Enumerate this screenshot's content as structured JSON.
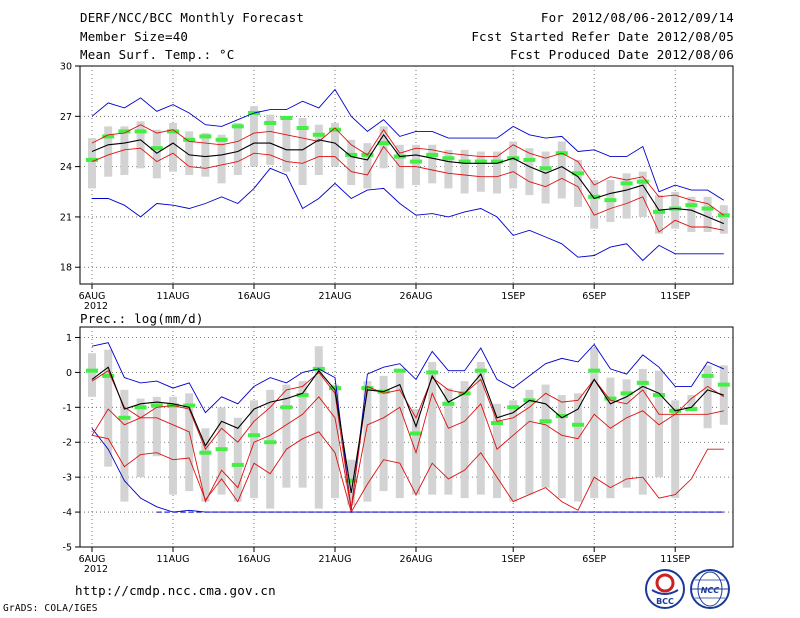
{
  "header": {
    "title": "DERF/NCC/BCC Monthly Forecast",
    "member_size": "Member Size=40",
    "variable1": "Mean Surf. Temp.: °C",
    "period": "For 2012/08/06-2012/09/14",
    "started": "Fcst Started Refer Date 2012/08/05",
    "produced": "Fcst Produced Date 2012/08/06"
  },
  "footer": {
    "url": "http://cmdp.ncc.cma.gov.cn",
    "credit": "GrADS: COLA/IGES",
    "logo1": "BCC",
    "logo2": "NCC"
  },
  "colors": {
    "ensemble_box": "#d3d3d3",
    "median": "#44ee44",
    "mean": "#000000",
    "spread": "#dd1111",
    "envelope": "#0000cc",
    "grid": "#555555"
  },
  "chart_data": [
    {
      "type": "line",
      "name": "temperature",
      "title": "Mean Surf. Temp.: °C",
      "ylabel": "°C",
      "ylim": [
        17,
        30
      ],
      "yticks": [
        18,
        21,
        24,
        27,
        30
      ],
      "x_tick_labels": [
        "6AUG",
        "11AUG",
        "16AUG",
        "21AUG",
        "26AUG",
        "1SEP",
        "6SEP",
        "11SEP"
      ],
      "x_tick_index": [
        0,
        5,
        10,
        15,
        20,
        26,
        31,
        36
      ],
      "year_label": "2012",
      "days": 40,
      "series": [
        {
          "name": "max",
          "color": "#0000cc",
          "values": [
            27.0,
            27.8,
            27.5,
            28.1,
            27.3,
            27.7,
            27.2,
            26.5,
            26.4,
            26.8,
            27.2,
            27.4,
            27.4,
            27.9,
            27.5,
            28.6,
            27.0,
            26.1,
            26.8,
            25.8,
            26.1,
            26.1,
            25.7,
            25.7,
            25.7,
            25.7,
            26.4,
            25.9,
            25.7,
            25.8,
            24.9,
            25.0,
            24.6,
            24.6,
            25.2,
            22.5,
            22.9,
            22.6,
            22.6,
            22.0
          ]
        },
        {
          "name": "mean_plus_sd",
          "color": "#dd1111",
          "values": [
            25.4,
            25.9,
            26.0,
            26.5,
            26.0,
            26.2,
            25.5,
            25.4,
            25.3,
            25.5,
            26.0,
            26.1,
            25.9,
            25.7,
            25.5,
            26.3,
            25.3,
            24.7,
            26.2,
            24.8,
            25.1,
            25.0,
            24.8,
            24.7,
            24.6,
            24.6,
            25.3,
            24.8,
            24.5,
            24.8,
            24.3,
            22.9,
            23.4,
            23.2,
            23.4,
            22.2,
            22.3,
            22.0,
            21.8,
            21.1
          ]
        },
        {
          "name": "mean",
          "color": "#000000",
          "values": [
            24.9,
            25.3,
            25.4,
            25.6,
            24.8,
            25.4,
            24.7,
            24.6,
            24.7,
            24.9,
            25.4,
            25.4,
            25.0,
            25.0,
            25.6,
            25.4,
            24.6,
            24.4,
            25.9,
            24.6,
            24.7,
            24.5,
            24.3,
            24.2,
            24.2,
            24.2,
            24.5,
            24.0,
            23.6,
            24.0,
            23.4,
            22.1,
            22.4,
            22.6,
            22.9,
            21.4,
            21.5,
            21.4,
            21.0,
            20.6
          ]
        },
        {
          "name": "mean_minus_sd",
          "color": "#dd1111",
          "values": [
            24.3,
            24.7,
            25.0,
            25.1,
            24.3,
            24.8,
            24.0,
            23.9,
            24.1,
            24.3,
            24.8,
            24.7,
            24.3,
            24.2,
            24.6,
            24.6,
            23.7,
            23.5,
            25.2,
            24.0,
            24.0,
            23.8,
            23.6,
            23.5,
            23.4,
            23.4,
            23.7,
            23.1,
            22.8,
            23.3,
            22.8,
            21.1,
            21.5,
            21.8,
            22.2,
            20.1,
            20.8,
            20.4,
            20.4,
            20.2
          ]
        },
        {
          "name": "min",
          "color": "#0000cc",
          "values": [
            22.1,
            22.1,
            21.7,
            21.0,
            21.8,
            21.7,
            21.5,
            21.8,
            22.2,
            21.8,
            22.7,
            23.9,
            23.5,
            21.5,
            22.1,
            23.0,
            22.1,
            22.6,
            22.7,
            21.8,
            21.1,
            21.2,
            21.0,
            21.3,
            21.5,
            21.0,
            19.9,
            20.2,
            19.8,
            19.4,
            18.6,
            18.7,
            19.2,
            19.4,
            18.4,
            19.3,
            18.8,
            18.8,
            18.8,
            18.8
          ]
        },
        {
          "name": "median",
          "color": "#44ee44",
          "values": [
            24.4,
            25.8,
            26.1,
            26.1,
            25.1,
            26.1,
            25.6,
            25.8,
            25.6,
            26.4,
            27.2,
            26.6,
            26.9,
            26.3,
            25.9,
            26.2,
            24.7,
            24.7,
            25.4,
            24.6,
            24.3,
            24.7,
            24.5,
            24.3,
            24.3,
            24.3,
            24.5,
            24.4,
            23.9,
            24.8,
            23.6,
            22.2,
            22.0,
            23.0,
            23.1,
            21.3,
            21.5,
            21.7,
            21.5,
            21.1
          ]
        },
        {
          "name": "ensemble_q75",
          "color": "#d3d3d3",
          "values": [
            25.7,
            26.4,
            26.4,
            26.7,
            26.2,
            26.6,
            26.1,
            26.0,
            25.9,
            26.6,
            27.6,
            27.1,
            27.0,
            26.9,
            26.5,
            26.6,
            25.6,
            25.4,
            26.4,
            25.3,
            25.3,
            25.3,
            25.0,
            25.0,
            24.9,
            24.9,
            25.5,
            25.1,
            24.9,
            25.5,
            24.4,
            23.2,
            23.2,
            23.6,
            23.7,
            22.3,
            22.5,
            22.2,
            22.2,
            21.7
          ]
        },
        {
          "name": "ensemble_q25",
          "color": "#d3d3d3",
          "values": [
            22.7,
            23.4,
            23.5,
            23.9,
            23.3,
            23.7,
            23.5,
            23.4,
            23.0,
            23.5,
            24.0,
            24.1,
            23.7,
            22.9,
            23.5,
            24.0,
            22.9,
            22.7,
            23.9,
            22.7,
            22.9,
            23.0,
            22.7,
            22.4,
            22.5,
            22.4,
            22.7,
            22.3,
            21.8,
            22.1,
            21.6,
            20.3,
            20.7,
            20.9,
            21.0,
            20.0,
            20.3,
            20.1,
            20.1,
            20.0
          ]
        }
      ]
    },
    {
      "type": "line",
      "name": "precipitation",
      "title": "Prec.: log(mm/d)",
      "ylabel": "log(mm/d)",
      "ylim": [
        -5,
        1.3
      ],
      "yticks": [
        -5,
        -4,
        -3,
        -2,
        -1,
        0,
        1
      ],
      "x_tick_labels": [
        "6AUG",
        "11AUG",
        "16AUG",
        "21AUG",
        "26AUG",
        "1SEP",
        "6SEP",
        "11SEP"
      ],
      "x_tick_index": [
        0,
        5,
        10,
        15,
        20,
        26,
        31,
        36
      ],
      "year_label": "2012",
      "days": 40,
      "series": [
        {
          "name": "max",
          "color": "#0000cc",
          "values": [
            0.75,
            0.85,
            -0.15,
            -0.3,
            -0.25,
            -0.45,
            -0.3,
            -1.15,
            -0.7,
            -0.9,
            -0.4,
            -0.15,
            -0.3,
            0.0,
            0.1,
            -0.15,
            -3.95,
            -0.05,
            0.15,
            0.25,
            -0.2,
            0.6,
            0.05,
            0.05,
            0.7,
            -0.2,
            -0.45,
            -0.1,
            0.25,
            0.4,
            0.3,
            0.8,
            0.1,
            -0.05,
            0.5,
            0.15,
            -0.4,
            -0.4,
            0.3,
            0.1
          ]
        },
        {
          "name": "mean_plus_sd",
          "color": "#dd1111",
          "values": [
            -0.25,
            0.05,
            -1.0,
            -1.3,
            -1.0,
            -0.95,
            -1.05,
            -2.2,
            -1.6,
            -2.0,
            -1.4,
            -1.0,
            -0.5,
            -0.4,
            0.0,
            -0.6,
            -3.9,
            -0.4,
            -0.6,
            -0.5,
            -1.3,
            -0.15,
            -0.5,
            -0.6,
            -0.2,
            -1.4,
            -1.3,
            -1.0,
            -0.6,
            -0.85,
            -0.8,
            -0.2,
            -0.8,
            -0.9,
            -0.5,
            -1.2,
            -1.2,
            -0.75,
            -0.4,
            -0.7
          ]
        },
        {
          "name": "mean",
          "color": "#000000",
          "values": [
            -0.2,
            0.15,
            -1.05,
            -0.9,
            -0.85,
            -0.9,
            -1.0,
            -2.1,
            -1.4,
            -1.6,
            -1.05,
            -0.85,
            -0.75,
            -0.6,
            0.05,
            -0.5,
            -3.45,
            -0.5,
            -0.55,
            -0.35,
            -1.55,
            -0.1,
            -0.85,
            -0.6,
            -0.05,
            -1.3,
            -1.15,
            -0.8,
            -0.9,
            -1.3,
            -1.05,
            -0.2,
            -0.9,
            -0.7,
            -0.4,
            -0.6,
            -1.1,
            -1.0,
            -0.5,
            -0.65
          ]
        },
        {
          "name": "mean_minus_sd",
          "color": "#dd1111",
          "values": [
            -1.8,
            -1.05,
            -1.5,
            -1.3,
            -1.3,
            -1.5,
            -1.7,
            -3.7,
            -2.8,
            -3.3,
            -2.0,
            -1.8,
            -1.5,
            -1.2,
            -0.7,
            -1.3,
            -3.9,
            -1.5,
            -1.3,
            -1.0,
            -2.3,
            -0.6,
            -1.6,
            -1.4,
            -0.9,
            -2.2,
            -1.8,
            -1.4,
            -1.5,
            -1.8,
            -1.9,
            -1.2,
            -1.6,
            -1.3,
            -1.1,
            -1.5,
            -1.2,
            -1.2,
            -1.2,
            -1.1
          ]
        },
        {
          "name": "low_spread",
          "color": "#dd1111",
          "values": [
            -1.8,
            -1.9,
            -2.7,
            -2.35,
            -2.3,
            -2.5,
            -2.45,
            -3.65,
            -3.05,
            -3.7,
            -2.6,
            -2.9,
            -2.2,
            -1.9,
            -1.7,
            -2.3,
            -4.0,
            -3.2,
            -2.5,
            -2.6,
            -3.5,
            -2.6,
            -3.05,
            -2.8,
            -2.3,
            -3.0,
            -3.7,
            -3.5,
            -3.3,
            -3.7,
            -3.95,
            -3.0,
            -3.3,
            -3.05,
            -3.0,
            -3.6,
            -3.5,
            -3.05,
            -2.2,
            -2.2
          ]
        },
        {
          "name": "min",
          "color": "#0000cc",
          "values": [
            -1.6,
            -2.2,
            -3.1,
            -3.6,
            -3.85,
            -4.0,
            -3.95,
            -4.0,
            -4.0,
            -4.0,
            -4.0,
            -4.0,
            -4.0,
            -4.0,
            -4.0,
            -4.0,
            -4.0,
            -4.0,
            -4.0,
            -4.0,
            -4.0,
            -4.0,
            -4.0,
            -4.0,
            -4.0,
            -4.0,
            -4.0,
            -4.0,
            -4.0,
            -4.0,
            -4.0,
            -4.0,
            -4.0,
            -4.0,
            -4.0,
            -4.0,
            -4.0,
            -4.0,
            -4.0,
            -4.0
          ]
        },
        {
          "name": "median",
          "color": "#44ee44",
          "values": [
            0.05,
            -0.1,
            -1.3,
            -1.0,
            -0.95,
            -0.95,
            -0.95,
            -2.3,
            -2.2,
            -2.65,
            -1.8,
            -2.0,
            -1.0,
            -0.65,
            0.1,
            -0.45,
            -3.1,
            -0.45,
            -0.55,
            0.05,
            -1.75,
            0.0,
            -0.9,
            -0.6,
            0.05,
            -1.45,
            -1.0,
            -0.8,
            -1.4,
            -1.25,
            -1.5,
            0.05,
            -0.75,
            -0.6,
            -0.3,
            -0.65,
            -1.1,
            -1.05,
            -0.1,
            -0.35
          ]
        },
        {
          "name": "ensemble_q75",
          "color": "#d3d3d3",
          "values": [
            0.55,
            0.65,
            -0.5,
            -0.75,
            -0.7,
            -0.7,
            -0.6,
            -1.6,
            -1.0,
            -1.3,
            -0.8,
            -0.5,
            -0.35,
            -0.25,
            0.75,
            -0.35,
            -2.5,
            -0.25,
            -0.1,
            0.1,
            -1.05,
            0.3,
            -0.45,
            -0.25,
            0.3,
            -0.9,
            -0.8,
            -0.5,
            -0.35,
            -0.65,
            -0.6,
            0.7,
            -0.15,
            -0.2,
            0.1,
            0.05,
            -0.8,
            -0.65,
            0.2,
            0.2
          ]
        },
        {
          "name": "ensemble_q25",
          "color": "#d3d3d3",
          "values": [
            -0.7,
            -2.7,
            -3.7,
            -3.0,
            -2.4,
            -3.5,
            -3.4,
            -3.7,
            -3.5,
            -3.7,
            -3.6,
            -3.9,
            -3.3,
            -3.3,
            -3.9,
            -3.6,
            -3.8,
            -3.7,
            -3.4,
            -3.6,
            -3.5,
            -3.5,
            -3.5,
            -3.6,
            -3.5,
            -3.6,
            -3.7,
            -3.5,
            -3.3,
            -3.6,
            -3.7,
            -3.6,
            -3.6,
            -3.3,
            -3.5,
            -3.0,
            -3.6,
            -1.1,
            -1.6,
            -1.5
          ]
        }
      ]
    }
  ]
}
